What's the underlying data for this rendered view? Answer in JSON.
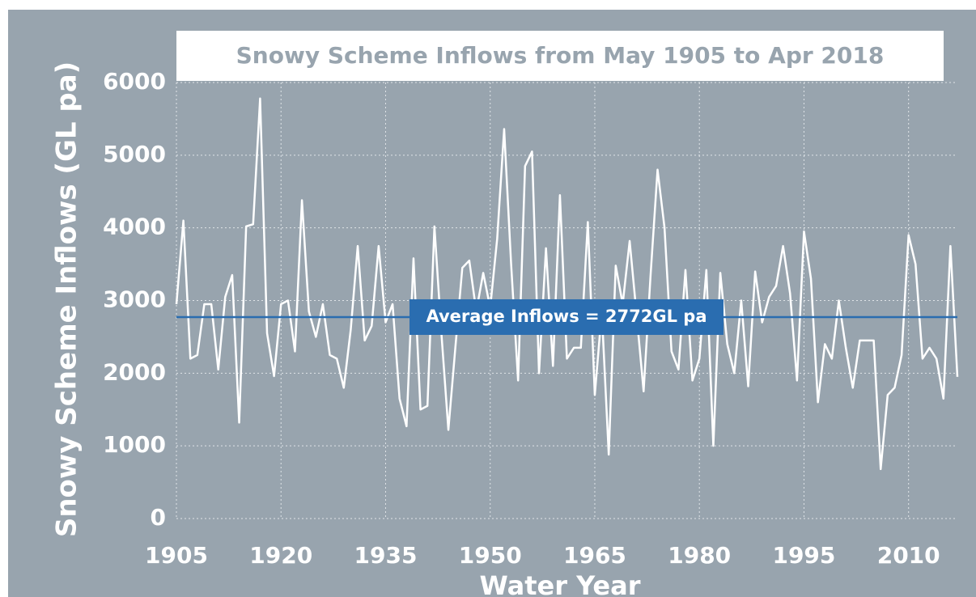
{
  "chart_data": {
    "type": "line",
    "title": "Snowy Scheme Inflows from May 1905 to Apr 2018",
    "x_label": "Water Year",
    "y_label": "Snowy Scheme Inflows (GL pa)",
    "x": [
      1905,
      1906,
      1907,
      1908,
      1909,
      1910,
      1911,
      1912,
      1913,
      1914,
      1915,
      1916,
      1917,
      1918,
      1919,
      1920,
      1921,
      1922,
      1923,
      1924,
      1925,
      1926,
      1927,
      1928,
      1929,
      1930,
      1931,
      1932,
      1933,
      1934,
      1935,
      1936,
      1937,
      1938,
      1939,
      1940,
      1941,
      1942,
      1943,
      1944,
      1945,
      1946,
      1947,
      1948,
      1949,
      1950,
      1951,
      1952,
      1953,
      1954,
      1955,
      1956,
      1957,
      1958,
      1959,
      1960,
      1961,
      1962,
      1963,
      1964,
      1965,
      1966,
      1967,
      1968,
      1969,
      1970,
      1971,
      1972,
      1973,
      1974,
      1975,
      1976,
      1977,
      1978,
      1979,
      1980,
      1981,
      1982,
      1983,
      1984,
      1985,
      1986,
      1987,
      1988,
      1989,
      1990,
      1991,
      1992,
      1993,
      1994,
      1995,
      1996,
      1997,
      1998,
      1999,
      2000,
      2001,
      2002,
      2003,
      2004,
      2005,
      2006,
      2007,
      2008,
      2009,
      2010,
      2011,
      2012,
      2013,
      2014,
      2015,
      2016,
      2017
    ],
    "series": [
      {
        "name": "Inflows",
        "color": "#ffffff",
        "values": [
          2950,
          4100,
          2200,
          2250,
          2950,
          2950,
          2050,
          3050,
          3350,
          1320,
          4020,
          4050,
          5780,
          2550,
          1960,
          2950,
          3000,
          2300,
          4380,
          2850,
          2500,
          2950,
          2250,
          2200,
          1800,
          2600,
          3750,
          2450,
          2650,
          3750,
          2700,
          2950,
          1650,
          1270,
          3580,
          1500,
          1550,
          4020,
          2550,
          1220,
          2350,
          3450,
          3550,
          2850,
          3380,
          2900,
          3850,
          5360,
          3500,
          1900,
          4850,
          5050,
          2000,
          3720,
          2100,
          4450,
          2200,
          2350,
          2350,
          4080,
          1700,
          2850,
          880,
          3480,
          2950,
          3820,
          2800,
          1750,
          3350,
          4800,
          4000,
          2300,
          2050,
          3420,
          1900,
          2200,
          3420,
          1000,
          3380,
          2400,
          2000,
          3000,
          1820,
          3400,
          2700,
          3050,
          3200,
          3750,
          3100,
          1900,
          3950,
          3300,
          1600,
          2400,
          2200,
          3000,
          2350,
          1800,
          2450,
          2450,
          2450,
          680,
          1700,
          1800,
          2250,
          3900,
          3500,
          2200,
          2350,
          2200,
          1650,
          3750,
          1950
        ]
      }
    ],
    "average": {
      "value": 2772,
      "label": "Average Inflows = 2772GL pa",
      "color": "#2a6db0"
    },
    "xlim": [
      1905,
      2017
    ],
    "xticks": [
      1905,
      1920,
      1935,
      1950,
      1965,
      1980,
      1995,
      2010
    ],
    "ylim": [
      0,
      6000
    ],
    "yticks": [
      0,
      1000,
      2000,
      3000,
      4000,
      5000,
      6000
    ],
    "grid": true
  }
}
